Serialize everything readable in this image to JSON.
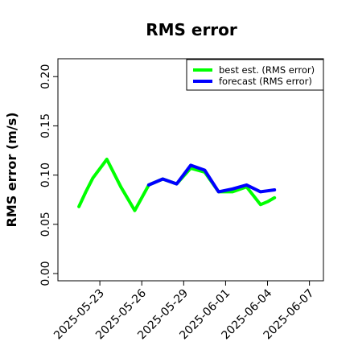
{
  "chart_data": {
    "type": "line",
    "title": "RMS error",
    "xlabel": "",
    "ylabel": "RMS error (m/s)",
    "ylim": [
      0.0,
      0.21
    ],
    "yticks": [
      0.0,
      0.05,
      0.1,
      0.15,
      0.2
    ],
    "ytick_labels": [
      "0.00",
      "0.05",
      "0.10",
      "0.15",
      "0.20"
    ],
    "xlim": [
      "2025-05-20",
      "2025-06-08"
    ],
    "xticks": [
      "2025-05-23",
      "2025-05-26",
      "2025-05-29",
      "2025-06-01",
      "2025-06-04",
      "2025-06-07"
    ],
    "highlight_tick": "2025-05-29",
    "grid": false,
    "legend_position": "top-right",
    "series": [
      {
        "name": "best est. (RMS error)",
        "color": "#00ff00",
        "x": [
          "2025-05-21T12:00",
          "2025-05-22",
          "2025-05-22T12:00",
          "2025-05-23T12:00",
          "2025-05-24T12:00",
          "2025-05-25T12:00",
          "2025-05-26T12:00",
          "2025-05-27T12:00",
          "2025-05-28T12:00",
          "2025-05-29T12:00",
          "2025-05-30T12:00",
          "2025-05-31T12:00",
          "2025-06-01T12:00",
          "2025-06-02T12:00",
          "2025-06-03T12:00",
          "2025-06-04",
          "2025-06-04T12:00"
        ],
        "values": [
          0.068,
          0.083,
          0.097,
          0.116,
          0.088,
          0.064,
          0.09,
          0.096,
          0.091,
          0.107,
          0.103,
          0.083,
          0.083,
          0.088,
          0.07,
          0.073,
          0.077
        ]
      },
      {
        "name": "forecast (RMS error)",
        "color": "#0000ff",
        "x": [
          "2025-05-26T12:00",
          "2025-05-27T12:00",
          "2025-05-28T12:00",
          "2025-05-29T12:00",
          "2025-05-30T12:00",
          "2025-05-31T12:00",
          "2025-06-01T12:00",
          "2025-06-02T12:00",
          "2025-06-03T12:00",
          "2025-06-04",
          "2025-06-04T12:00"
        ],
        "values": [
          0.09,
          0.096,
          0.091,
          0.11,
          0.105,
          0.083,
          0.086,
          0.09,
          0.083,
          0.084,
          0.085
        ]
      }
    ]
  }
}
